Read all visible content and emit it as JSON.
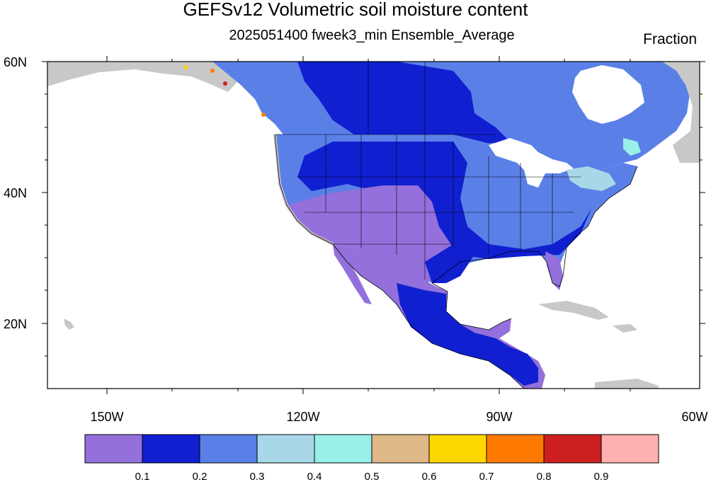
{
  "title": "GEFSv12 Volumetric soil moisture content",
  "subtitle": "2025051400 fweek3_min Ensemble_Average",
  "units": "Fraction",
  "lat_labels": [
    "60N",
    "40N",
    "20N"
  ],
  "lon_labels": [
    "150W",
    "120W",
    "90W",
    "60W"
  ],
  "colorbar": {
    "colors": [
      "#9370db",
      "#1020d0",
      "#5a80e8",
      "#a8d8e8",
      "#98f0e8",
      "#deb887",
      "#ffd700",
      "#ff7a00",
      "#cc2020",
      "#ffb0b0"
    ],
    "labels": [
      "0.1",
      "0.2",
      "0.3",
      "0.4",
      "0.5",
      "0.6",
      "0.7",
      "0.8",
      "0.9"
    ]
  },
  "colors": {
    "ocean": "#ffffff",
    "no_data_land": "#c8c8c8",
    "border": "#000000"
  }
}
